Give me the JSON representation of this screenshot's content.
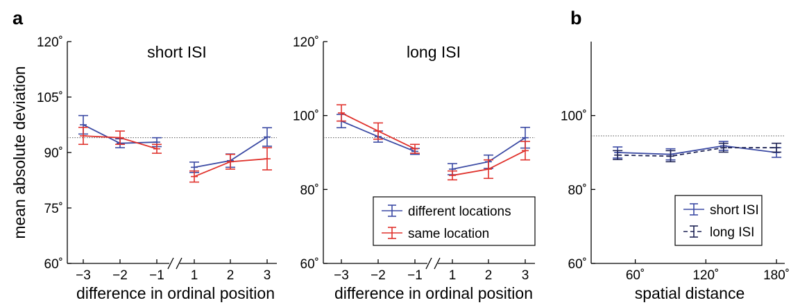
{
  "panels": {
    "a_label": "a",
    "b_label": "b"
  },
  "colors": {
    "blue": "#3a49a3",
    "red": "#e0312b",
    "navy": "#1f2455",
    "chance": "#555555"
  },
  "chart_data": [
    {
      "id": "a-short",
      "type": "line",
      "title": "short ISI",
      "xlabel": "difference in ordinal position",
      "ylabel": "mean absolute deviation",
      "x": [
        -3,
        -2,
        -1,
        1,
        2,
        3
      ],
      "x_tick_labels": [
        "−3",
        "−2",
        "−1",
        "1",
        "2",
        "3"
      ],
      "axis_break": "between −1 and 1",
      "ylim": [
        60,
        120
      ],
      "y_ticks": [
        60,
        75,
        90,
        105,
        120
      ],
      "y_tick_labels": [
        "60˚",
        "75˚",
        "90˚",
        "105˚",
        "120˚"
      ],
      "chance_level": 94,
      "series": [
        {
          "name": "different locations",
          "color": "#3a49a3",
          "dash": "",
          "values": [
            97.5,
            92.5,
            92.8,
            86.0,
            87.8,
            94.2
          ],
          "err": [
            2.5,
            1.2,
            1.2,
            1.4,
            1.8,
            2.5
          ]
        },
        {
          "name": "same location",
          "color": "#e0312b",
          "dash": "",
          "values": [
            94.5,
            94.0,
            91.0,
            83.5,
            87.5,
            88.3
          ],
          "err": [
            2.3,
            1.8,
            1.2,
            1.5,
            2.0,
            3.0
          ]
        }
      ]
    },
    {
      "id": "a-long",
      "type": "line",
      "title": "long ISI",
      "xlabel": "difference in ordinal position",
      "ylabel": "",
      "x": [
        -3,
        -2,
        -1,
        1,
        2,
        3
      ],
      "x_tick_labels": [
        "−3",
        "−2",
        "−1",
        "1",
        "2",
        "3"
      ],
      "axis_break": "between −1 and 1",
      "ylim": [
        60,
        120
      ],
      "y_ticks": [
        60,
        80,
        100,
        120
      ],
      "y_tick_labels": [
        "60˚",
        "80˚",
        "100˚",
        "120˚"
      ],
      "chance_level": 94,
      "legend": {
        "placement": "bottom-right"
      },
      "series": [
        {
          "name": "different locations",
          "color": "#3a49a3",
          "dash": "",
          "values": [
            98.5,
            94.3,
            90.3,
            85.5,
            87.5,
            94.0
          ],
          "err": [
            1.8,
            1.5,
            0.8,
            1.5,
            1.8,
            2.8
          ]
        },
        {
          "name": "same location",
          "color": "#e0312b",
          "dash": "",
          "values": [
            100.7,
            95.8,
            91.0,
            83.8,
            85.5,
            90.5
          ],
          "err": [
            2.2,
            2.2,
            1.2,
            1.2,
            2.5,
            2.5
          ]
        }
      ]
    },
    {
      "id": "b",
      "type": "line",
      "title": "",
      "xlabel": "spatial distance",
      "ylabel": "",
      "x": [
        45,
        90,
        135,
        180
      ],
      "xlim": [
        22.5,
        187
      ],
      "x_ticks": [
        60,
        120,
        180
      ],
      "x_tick_labels": [
        "60˚",
        "120˚",
        "180˚"
      ],
      "ylim": [
        60,
        120
      ],
      "y_ticks": [
        60,
        80,
        100
      ],
      "y_tick_labels": [
        "60˚",
        "80˚",
        "100˚"
      ],
      "chance_level": 94.5,
      "legend": {
        "placement": "bottom-right"
      },
      "series": [
        {
          "name": "short ISI",
          "color": "#3a49a3",
          "dash": "",
          "values": [
            90.0,
            89.5,
            91.8,
            90.0
          ],
          "err": [
            1.5,
            1.5,
            1.2,
            1.3
          ]
        },
        {
          "name": "long ISI",
          "color": "#1f2455",
          "dash": "6,4",
          "values": [
            89.3,
            89.0,
            91.3,
            91.3
          ],
          "err": [
            1.2,
            1.5,
            1.2,
            1.2
          ]
        }
      ]
    }
  ]
}
